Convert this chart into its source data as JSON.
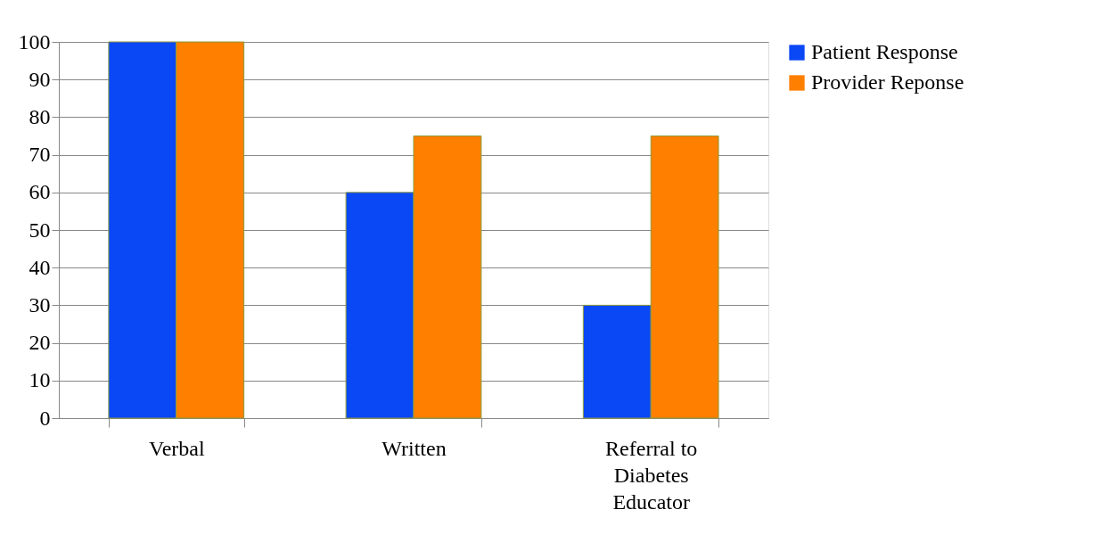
{
  "chart_data": {
    "type": "bar",
    "categories": [
      "Verbal",
      "Written",
      "Referral to Diabetes Educator"
    ],
    "series": [
      {
        "name": "Patient Response",
        "color": "#0a47f5",
        "values": [
          100,
          60,
          30
        ]
      },
      {
        "name": "Provider Reponse",
        "color": "#ff7f00",
        "values": [
          100,
          75,
          75
        ]
      }
    ],
    "ylim": [
      0,
      100
    ],
    "yticks": [
      0,
      10,
      20,
      30,
      40,
      50,
      60,
      70,
      80,
      90,
      100
    ],
    "grid": "y",
    "legend": "right"
  }
}
